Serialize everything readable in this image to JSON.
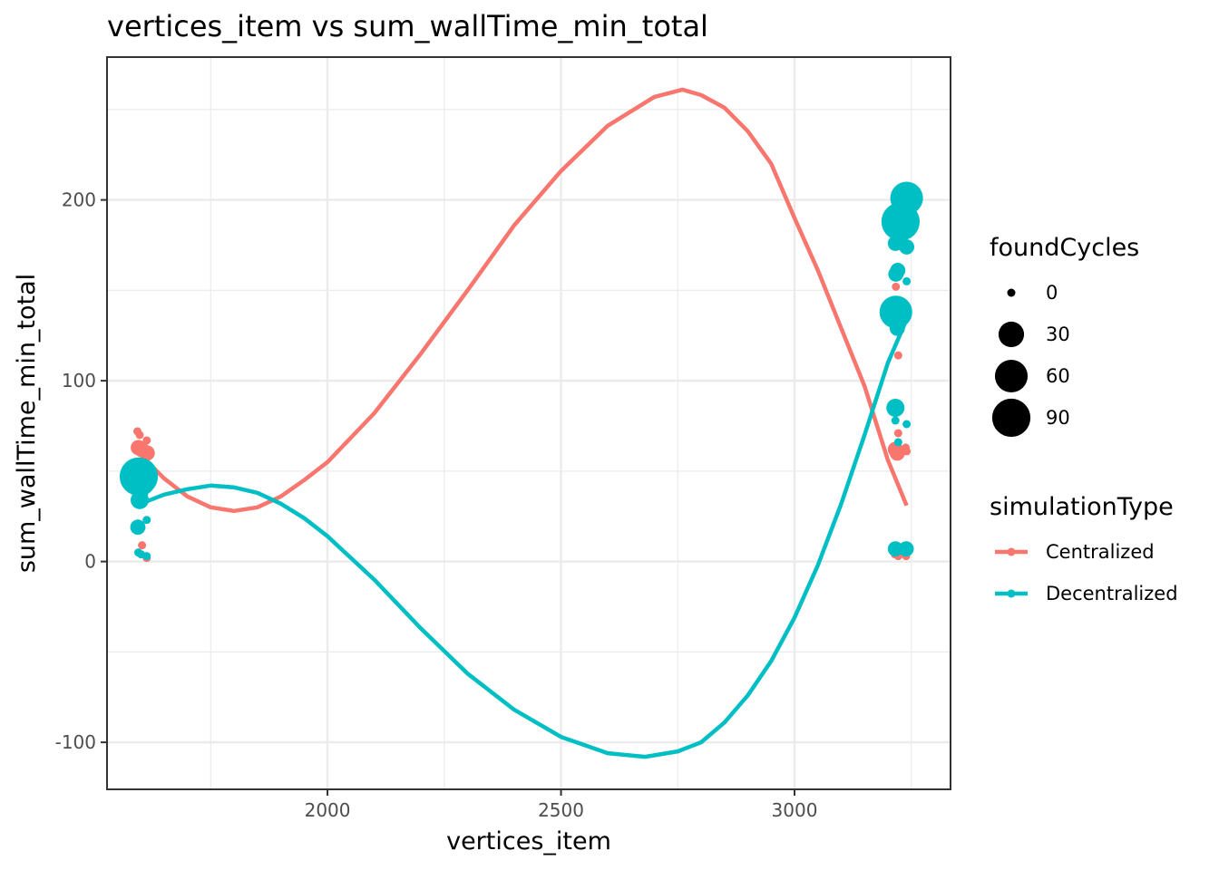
{
  "chart_data": {
    "type": "scatter",
    "title": "vertices_item  vs  sum_wallTime_min_total",
    "xlabel": "vertices_item",
    "ylabel": "sum_wallTime_min_total",
    "xlim": [
      1528,
      3334
    ],
    "ylim": [
      -126,
      279
    ],
    "x_ticks": [
      2000,
      2500,
      3000
    ],
    "x_minor": [
      1750,
      2250,
      2750,
      3250
    ],
    "y_ticks": [
      -100,
      0,
      100,
      200
    ],
    "y_minor": [
      -50,
      50,
      150,
      250
    ],
    "grid": true,
    "legend_position": "right",
    "size_legend": {
      "title": "foundCycles",
      "entries": [
        {
          "label": "0",
          "value": 0
        },
        {
          "label": "30",
          "value": 30
        },
        {
          "label": "60",
          "value": 60
        },
        {
          "label": "90",
          "value": 90
        }
      ]
    },
    "color_legend": {
      "title": "simulationType",
      "entries": [
        {
          "label": "Centralized",
          "color": "#F8766D"
        },
        {
          "label": "Decentralized",
          "color": "#00BFC4"
        }
      ]
    },
    "series": [
      {
        "name": "Centralized",
        "color": "#F8766D",
        "points": [
          {
            "x": 1593,
            "y": 72,
            "size": 0
          },
          {
            "x": 1598,
            "y": 70,
            "size": 0
          },
          {
            "x": 1613,
            "y": 67,
            "size": 0
          },
          {
            "x": 1595,
            "y": 63,
            "size": 5
          },
          {
            "x": 1602,
            "y": 62,
            "size": 5
          },
          {
            "x": 1610,
            "y": 62,
            "size": 0
          },
          {
            "x": 1614,
            "y": 60,
            "size": 5
          },
          {
            "x": 1603,
            "y": 9,
            "size": 0
          },
          {
            "x": 1613,
            "y": 2,
            "size": 0
          },
          {
            "x": 3217,
            "y": 152,
            "size": 0
          },
          {
            "x": 3222,
            "y": 114,
            "size": 0
          },
          {
            "x": 3222,
            "y": 71,
            "size": 0
          },
          {
            "x": 3216,
            "y": 62,
            "size": 5
          },
          {
            "x": 3220,
            "y": 60,
            "size": 5
          },
          {
            "x": 3238,
            "y": 63,
            "size": 0
          },
          {
            "x": 3240,
            "y": 61,
            "size": 0
          },
          {
            "x": 3215,
            "y": 4,
            "size": 0
          },
          {
            "x": 3222,
            "y": 3,
            "size": 0
          },
          {
            "x": 3239,
            "y": 3,
            "size": 0
          }
        ],
        "smooth_x": [
          1600,
          1650,
          1700,
          1750,
          1800,
          1850,
          1900,
          1950,
          2000,
          2100,
          2200,
          2300,
          2400,
          2500,
          2600,
          2700,
          2760,
          2800,
          2850,
          2900,
          2950,
          3000,
          3050,
          3100,
          3150,
          3200,
          3240
        ],
        "smooth_y": [
          59,
          46,
          36,
          30,
          28,
          30,
          36,
          45,
          55,
          82,
          115,
          150,
          186,
          216,
          241,
          257,
          261,
          258,
          251,
          238,
          220,
          190,
          161,
          129,
          97,
          56,
          31
        ]
      },
      {
        "name": "Decentralized",
        "color": "#00BFC4",
        "points": [
          {
            "x": 1596,
            "y": 47,
            "size": 90
          },
          {
            "x": 1610,
            "y": 48,
            "size": 20
          },
          {
            "x": 1605,
            "y": 43,
            "size": 20
          },
          {
            "x": 1600,
            "y": 38,
            "size": 5
          },
          {
            "x": 1598,
            "y": 34,
            "size": 10
          },
          {
            "x": 1613,
            "y": 23,
            "size": 0
          },
          {
            "x": 1594,
            "y": 19,
            "size": 5
          },
          {
            "x": 1598,
            "y": 18,
            "size": 0
          },
          {
            "x": 1595,
            "y": 5,
            "size": 0
          },
          {
            "x": 1601,
            "y": 4,
            "size": 0
          },
          {
            "x": 1613,
            "y": 3,
            "size": 0
          },
          {
            "x": 3240,
            "y": 201,
            "size": 60
          },
          {
            "x": 3227,
            "y": 188,
            "size": 90
          },
          {
            "x": 3222,
            "y": 188,
            "size": 60
          },
          {
            "x": 3216,
            "y": 176,
            "size": 5
          },
          {
            "x": 3240,
            "y": 174,
            "size": 5
          },
          {
            "x": 3221,
            "y": 161,
            "size": 5
          },
          {
            "x": 3217,
            "y": 159,
            "size": 5
          },
          {
            "x": 3240,
            "y": 155,
            "size": 0
          },
          {
            "x": 3217,
            "y": 138,
            "size": 60
          },
          {
            "x": 3220,
            "y": 129,
            "size": 5
          },
          {
            "x": 3216,
            "y": 85,
            "size": 10
          },
          {
            "x": 3216,
            "y": 78,
            "size": 0
          },
          {
            "x": 3240,
            "y": 76,
            "size": 0
          },
          {
            "x": 3222,
            "y": 66,
            "size": 0
          },
          {
            "x": 3216,
            "y": 7,
            "size": 5
          },
          {
            "x": 3222,
            "y": 7,
            "size": 0
          },
          {
            "x": 3239,
            "y": 7,
            "size": 5
          }
        ],
        "smooth_x": [
          1600,
          1650,
          1700,
          1750,
          1800,
          1850,
          1900,
          1950,
          2000,
          2100,
          2200,
          2300,
          2400,
          2500,
          2600,
          2680,
          2750,
          2800,
          2850,
          2900,
          2950,
          3000,
          3050,
          3100,
          3150,
          3200,
          3240
        ],
        "smooth_y": [
          32,
          37,
          40,
          42,
          41,
          38,
          32,
          24,
          14,
          -10,
          -37,
          -62,
          -82,
          -97,
          -106,
          -108,
          -105,
          -100,
          -89,
          -74,
          -55,
          -31,
          -2,
          32,
          70,
          110,
          134
        ]
      }
    ]
  }
}
